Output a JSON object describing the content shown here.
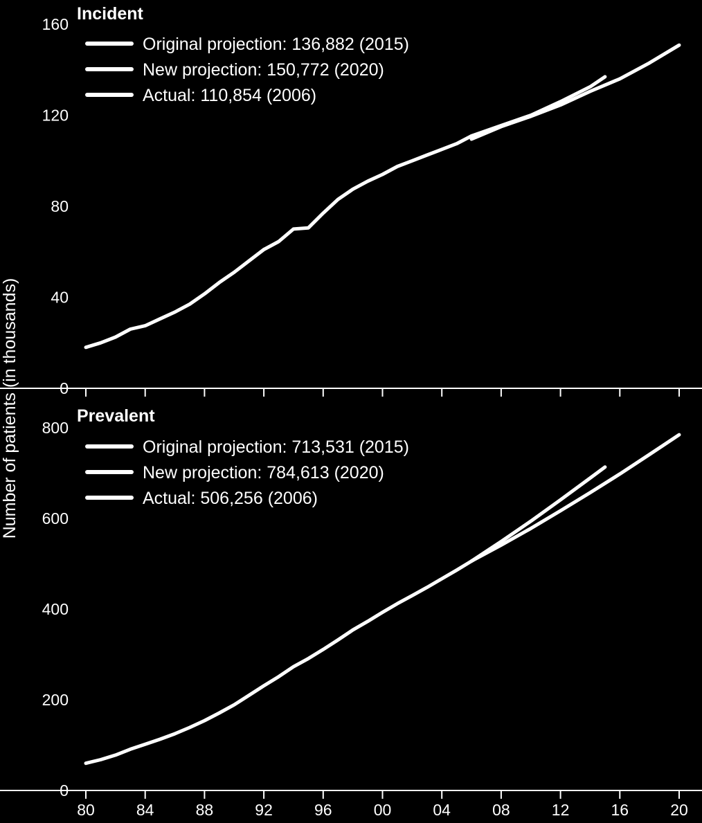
{
  "ylabel": "Number of patients (in thousands)",
  "colors": {
    "background": "#000000",
    "line": "#ffffff",
    "axis": "#ffffff"
  },
  "chart_data": [
    {
      "type": "line",
      "title": "Incident",
      "xlabel": "",
      "ylabel": "Number of patients (in thousands)",
      "ylim": [
        0,
        160
      ],
      "xlim": [
        1980,
        2020
      ],
      "y_ticks": [
        0,
        40,
        80,
        120,
        160
      ],
      "x_ticks": [
        "80",
        "84",
        "88",
        "92",
        "96",
        "00",
        "04",
        "08",
        "12",
        "16",
        "20"
      ],
      "grid": false,
      "legend_position": "top-left",
      "legend": [
        "Original projection: 136,882 (2015)",
        "New projection: 150,772 (2020)",
        "Actual: 110,854 (2006)"
      ],
      "series": [
        {
          "name": "Actual: 110,854 (2006)",
          "x": [
            1980,
            1981,
            1982,
            1983,
            1984,
            1985,
            1986,
            1987,
            1988,
            1989,
            1990,
            1991,
            1992,
            1993,
            1994,
            1995,
            1996,
            1997,
            1998,
            1999,
            2000,
            2001,
            2002,
            2003,
            2004,
            2005,
            2006
          ],
          "values": [
            18,
            20,
            22.5,
            26,
            27.5,
            30.5,
            33.5,
            37,
            41.5,
            46.5,
            51,
            56,
            61,
            64.5,
            70,
            70.5,
            77,
            83,
            87.5,
            91,
            94,
            97.5,
            100,
            102.5,
            105,
            107.5,
            110.9
          ]
        },
        {
          "name": "Original projection: 136,882 (2015)",
          "x": [
            2006,
            2008,
            2010,
            2012,
            2014,
            2015
          ],
          "values": [
            110.9,
            115.5,
            120,
            126,
            132.5,
            136.9
          ]
        },
        {
          "name": "New projection: 150,772 (2020)",
          "x": [
            2006,
            2008,
            2010,
            2012,
            2014,
            2016,
            2018,
            2020
          ],
          "values": [
            109.5,
            115,
            119.5,
            124.5,
            130.5,
            136,
            143,
            150.8
          ]
        }
      ]
    },
    {
      "type": "line",
      "title": "Prevalent",
      "xlabel": "",
      "ylabel": "Number of patients (in thousands)",
      "ylim": [
        0,
        800
      ],
      "xlim": [
        1980,
        2020
      ],
      "y_ticks": [
        0,
        200,
        400,
        600,
        800
      ],
      "x_ticks": [
        "80",
        "84",
        "88",
        "92",
        "96",
        "00",
        "04",
        "08",
        "12",
        "16",
        "20"
      ],
      "grid": false,
      "legend_position": "top-left",
      "legend": [
        "Original projection: 713,531 (2015)",
        "New projection: 784,613 (2020)",
        "Actual: 506,256 (2006)"
      ],
      "series": [
        {
          "name": "Actual: 506,256 (2006)",
          "x": [
            1980,
            1981,
            1982,
            1983,
            1984,
            1985,
            1986,
            1987,
            1988,
            1989,
            1990,
            1991,
            1992,
            1993,
            1994,
            1995,
            1996,
            1997,
            1998,
            1999,
            2000,
            2001,
            2002,
            2003,
            2004,
            2005,
            2006
          ],
          "values": [
            60,
            68,
            78,
            91,
            102,
            113,
            125,
            139,
            154,
            171,
            189,
            210,
            231,
            251,
            273,
            291,
            311,
            332,
            354,
            373,
            393,
            412,
            430,
            448,
            467,
            486,
            506
          ]
        },
        {
          "name": "Original projection: 713,531 (2015)",
          "x": [
            2006,
            2008,
            2010,
            2012,
            2014,
            2015
          ],
          "values": [
            506,
            549,
            594,
            641,
            689,
            713.5
          ]
        },
        {
          "name": "New projection: 784,613 (2020)",
          "x": [
            2006,
            2008,
            2010,
            2012,
            2014,
            2016,
            2018,
            2020
          ],
          "values": [
            506,
            541,
            578,
            617,
            657,
            698,
            741,
            784.6
          ]
        }
      ]
    }
  ]
}
